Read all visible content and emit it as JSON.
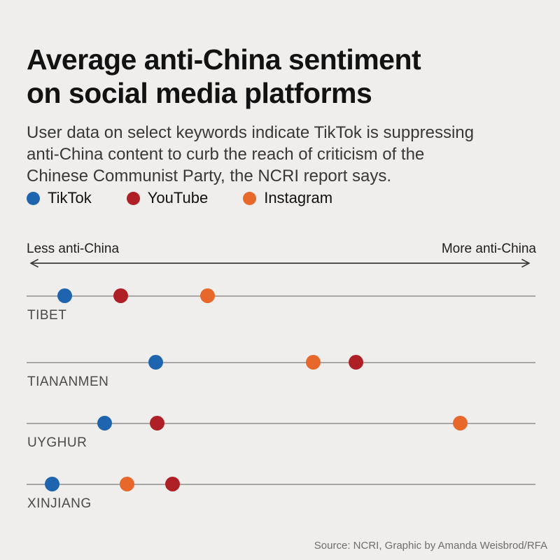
{
  "header": {
    "title_lines": [
      "Average anti-China sentiment",
      "on social media platforms"
    ],
    "subtitle_lines": [
      "User data on select keywords indicate TikTok is suppressing",
      "anti-China content to curb the reach of criticism of the",
      "Chinese Communist Party, the NCRI report says."
    ]
  },
  "source": "Source: NCRI, Graphic by Amanda Weisbrod/RFA",
  "colors": {
    "background": "#efeeec",
    "row_line": "#a8a7a5",
    "arrow": "#3c3c3c",
    "tiktok_blue": "#1f64af",
    "youtube_red": "#ae1f26",
    "instagram_orange": "#e8682b",
    "title_text": "#121212",
    "body_text": "#383838",
    "category_label": "#4a4a4a",
    "source_text": "#6f6e6c"
  },
  "chart_data": {
    "type": "scatter",
    "title": "Average anti-China sentiment on social media platforms",
    "subtitle": "User data on select keywords indicate TikTok is suppressing anti-China content to curb the reach of criticism of the Chinese Communist Party, the NCRI report says.",
    "categories": [
      "TIBET",
      "TIANANMEN",
      "UYGHUR",
      "XINJIANG"
    ],
    "x_axis": {
      "left_label": "Less anti-China",
      "right_label": "More anti-China",
      "scale_note": "qualitative sentiment axis; values are fractions of axis width, 0 = least anti-China, 1 = most anti-China",
      "range": [
        0,
        1
      ]
    },
    "series": [
      {
        "name": "TikTok",
        "color": "#1f64af",
        "values": [
          0.074,
          0.253,
          0.153,
          0.05
        ]
      },
      {
        "name": "YouTube",
        "color": "#ae1f26",
        "values": [
          0.184,
          0.647,
          0.256,
          0.286
        ]
      },
      {
        "name": "Instagram",
        "color": "#e8682b",
        "values": [
          0.355,
          0.563,
          0.851,
          0.197
        ]
      }
    ],
    "legend_position": "top-left",
    "grid": false
  }
}
